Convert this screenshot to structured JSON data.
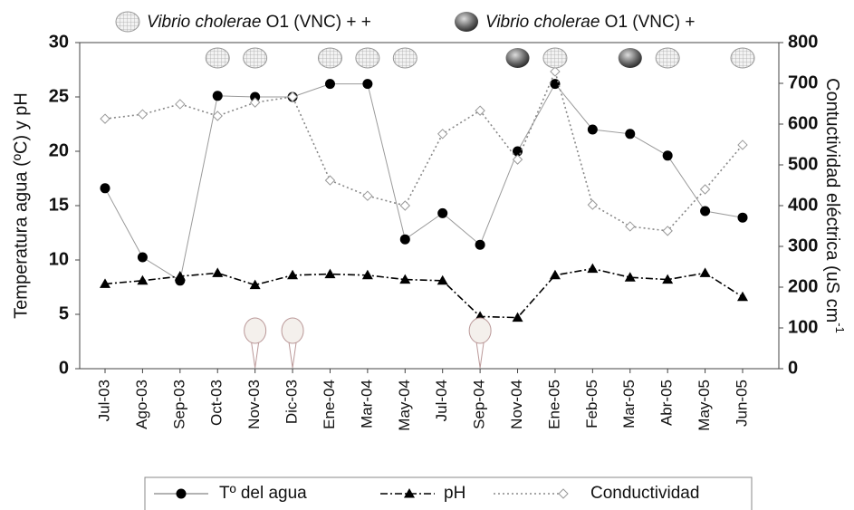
{
  "chart_data": {
    "type": "line",
    "legend_top": [
      {
        "italic": "Vibrio cholerae",
        "rest": " O1 (VNC) + +"
      },
      {
        "italic": "Vibrio cholerae",
        "rest": " O1 (VNC) +"
      }
    ],
    "ylabel": "Temperatura agua (ºC) y pH",
    "y2label": "Contuctividad eléctrica  (uS cm",
    "y2label_sup": "-1",
    "categories": [
      "Jul-03",
      "Ago-03",
      "Sep-03",
      "Oct-03",
      "Nov-03",
      "Dic-03",
      "Ene-04",
      "Mar-04",
      "May-04",
      "Jul-04",
      "Sep-04",
      "Nov-04",
      "Ene-05",
      "Feb-05",
      "Mar-05",
      "Abr-05",
      "May-05",
      "Jun-05"
    ],
    "series": [
      {
        "name": "Tº del agua",
        "color": "#000000",
        "line_color": "#9a9a9a",
        "marker": "circle",
        "dash": "solid",
        "values": [
          16.6,
          10.25,
          8.1,
          25.1,
          25,
          25,
          26.2,
          26.2,
          11.9,
          14.3,
          11.4,
          20,
          26.2,
          22,
          21.6,
          19.6,
          14.5,
          13.9
        ]
      },
      {
        "name": "pH",
        "color": "#000000",
        "line_color": "#000000",
        "marker": "triangle",
        "dash": "dashdot",
        "values": [
          7.8,
          8.1,
          8.5,
          8.8,
          7.7,
          8.6,
          8.7,
          8.6,
          8.2,
          8.1,
          4.8,
          4.7,
          8.6,
          9.2,
          8.4,
          8.2,
          8.8,
          6.6
        ]
      },
      {
        "name": "Conductividad",
        "color": "#999999",
        "line_color": "#888888",
        "marker": "diamond",
        "dash": "dotted",
        "axis": "y2",
        "values": [
          613,
          624,
          649,
          620,
          653,
          667,
          462,
          424,
          400,
          576,
          633,
          513,
          729,
          402,
          349,
          338,
          440,
          549
        ]
      }
    ],
    "ylim": [
      0,
      30
    ],
    "yticks": [
      0,
      5,
      10,
      15,
      20,
      25,
      30
    ],
    "y2lim": [
      0,
      800
    ],
    "y2ticks": [
      0,
      100,
      200,
      300,
      400,
      500,
      600,
      700,
      800
    ]
  }
}
